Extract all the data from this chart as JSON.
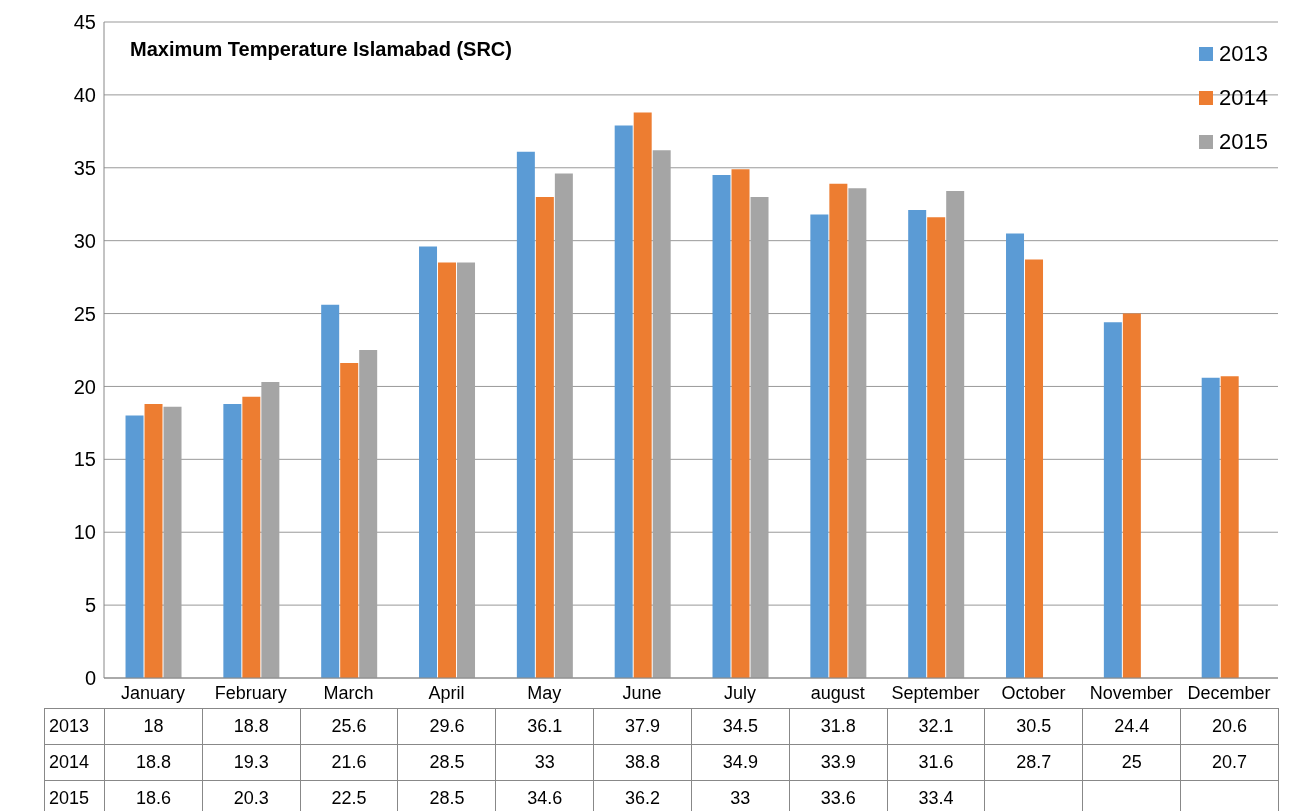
{
  "chart_data": {
    "type": "bar",
    "title": "Maximum Temperature Islamabad (SRC)",
    "categories": [
      "January",
      "February",
      "March",
      "April",
      "May",
      "June",
      "July",
      "august",
      "September",
      "October",
      "November",
      "December"
    ],
    "series": [
      {
        "name": "2013",
        "color": "#5b9bd5",
        "values": [
          18,
          18.8,
          25.6,
          29.6,
          36.1,
          37.9,
          34.5,
          31.8,
          32.1,
          30.5,
          24.4,
          20.6
        ]
      },
      {
        "name": "2014",
        "color": "#ed7d31",
        "values": [
          18.8,
          19.3,
          21.6,
          28.5,
          33,
          38.8,
          34.9,
          33.9,
          31.6,
          28.7,
          25,
          20.7
        ]
      },
      {
        "name": "2015",
        "color": "#a5a5a5",
        "values": [
          18.6,
          20.3,
          22.5,
          28.5,
          34.6,
          36.2,
          33,
          33.6,
          33.4,
          null,
          null,
          null
        ]
      }
    ],
    "ylim": [
      0,
      45
    ],
    "yticks": [
      0,
      5,
      10,
      15,
      20,
      25,
      30,
      35,
      40,
      45
    ],
    "grid": "y",
    "legend": "top right",
    "data_labels": true
  }
}
